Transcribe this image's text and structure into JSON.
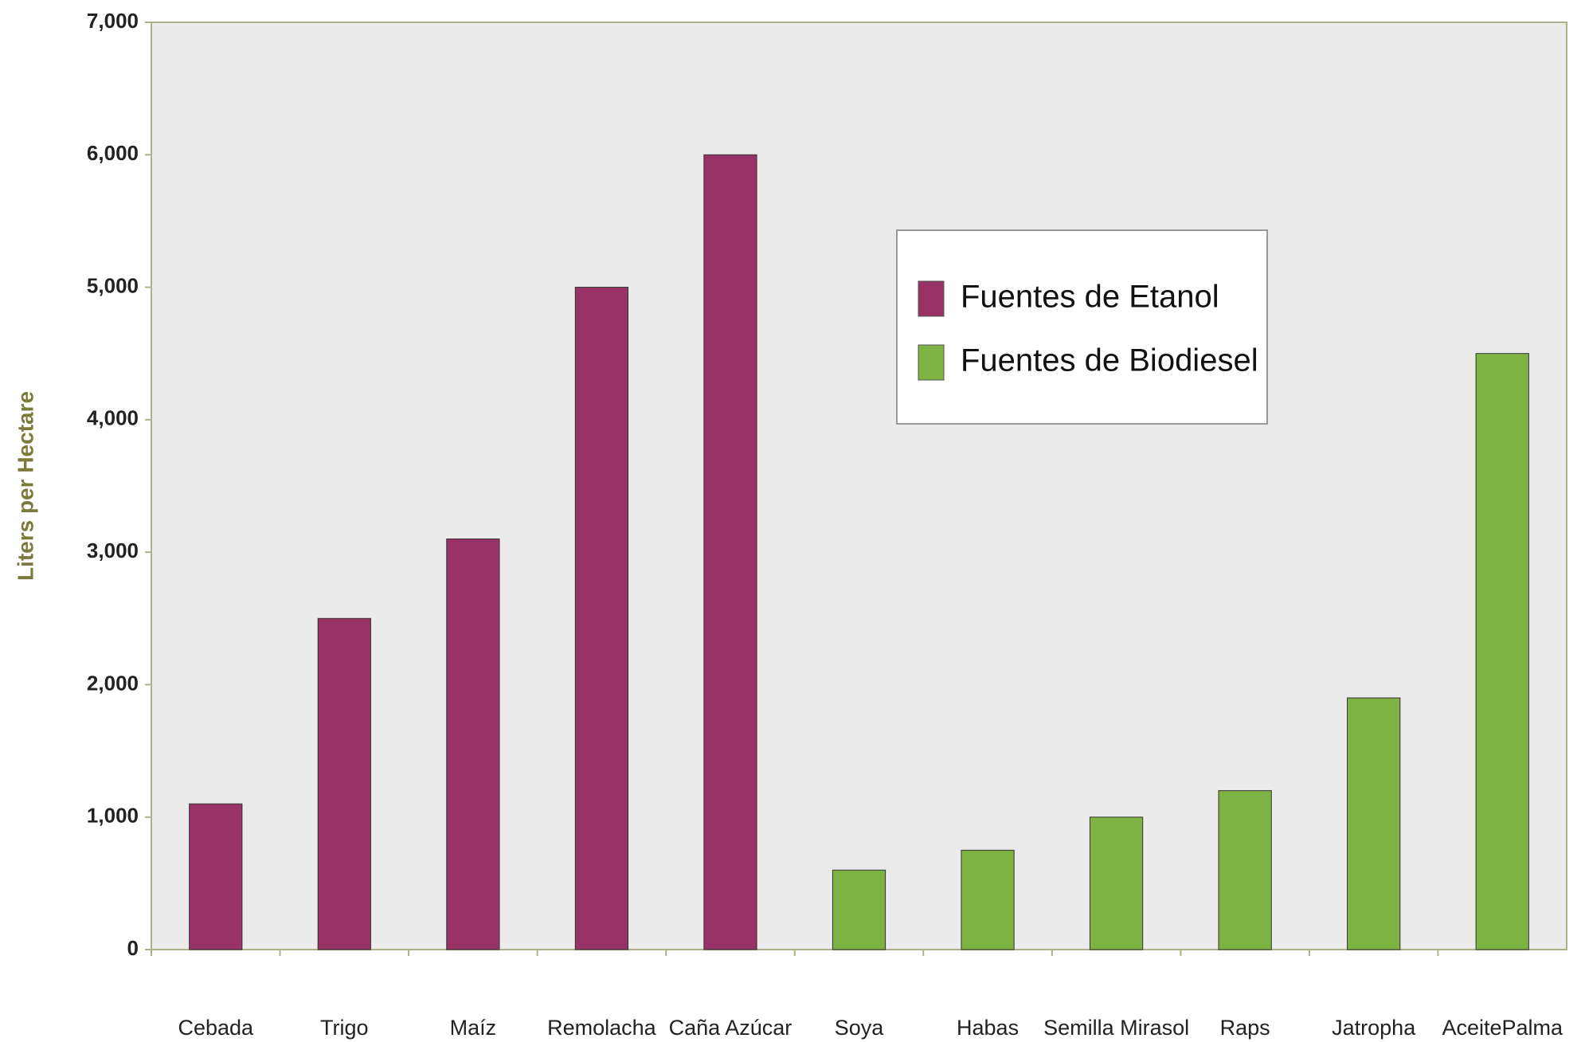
{
  "chart_data": {
    "type": "bar",
    "y_label": "Liters per Hectare",
    "categories": [
      "Cebada",
      "Trigo",
      "Maíz",
      "Remolacha",
      "Caña Azúcar",
      "Soya",
      "Habas",
      "Semilla Mirasol",
      "Raps",
      "Jatropha",
      "AceitePalma"
    ],
    "series": [
      {
        "name": "Fuentes de Etanol",
        "color": "#993366",
        "values": [
          1100,
          2500,
          3100,
          5000,
          6000,
          null,
          null,
          null,
          null,
          null,
          null
        ]
      },
      {
        "name": "Fuentes de Biodiesel",
        "color": "#7cb342",
        "values": [
          null,
          null,
          null,
          null,
          null,
          600,
          750,
          1000,
          1200,
          1900,
          4500
        ]
      }
    ],
    "ylim": [
      0,
      7000
    ],
    "yticks": [
      0,
      {
        "value": 1000,
        "label": "1,000"
      },
      {
        "value": 2000,
        "label": "2,000"
      },
      {
        "value": 3000,
        "label": "3,000"
      },
      {
        "value": 4000,
        "label": "4,000"
      },
      {
        "value": 5000,
        "label": "5,000"
      },
      {
        "value": 6000,
        "label": "6,000"
      },
      {
        "value": 7000,
        "label": "7,000"
      }
    ],
    "legend": "upper right"
  }
}
